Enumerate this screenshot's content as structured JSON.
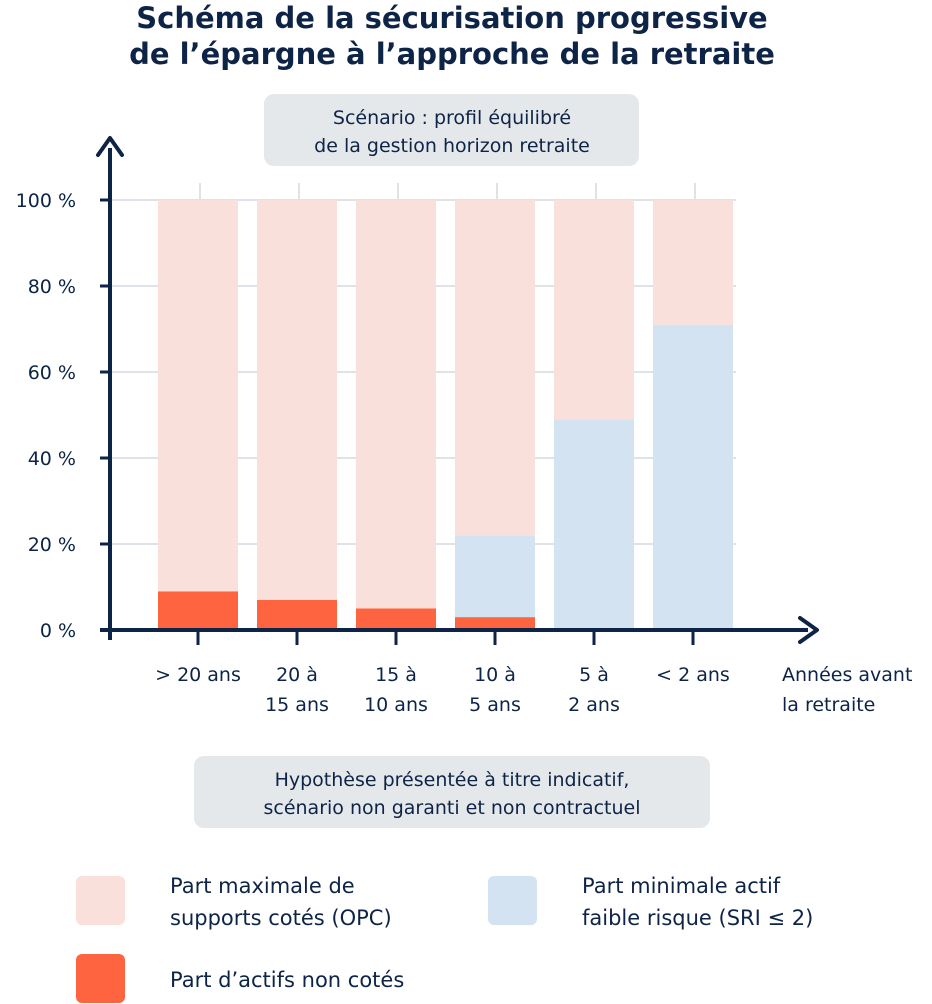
{
  "chart_data": {
    "type": "bar",
    "stacked": true,
    "title": [
      "Schéma de la sécurisation progressive",
      "de l’épargne à l’approche de la retraite"
    ],
    "subtitle": [
      "Scénario : profil équilibré",
      "de la gestion horizon retraite"
    ],
    "xlabel": [
      "Années avant",
      "la retraite"
    ],
    "ylim": [
      0,
      100
    ],
    "yticks": [
      "0 %",
      "20 %",
      "40 %",
      "60 %",
      "80 %",
      "100 %"
    ],
    "grid": true,
    "categories": [
      [
        "> 20 ans"
      ],
      [
        "20 à",
        "15 ans"
      ],
      [
        "15 à",
        "10 ans"
      ],
      [
        "10 à",
        "5 ans"
      ],
      [
        "5 à",
        "2 ans"
      ],
      [
        "< 2 ans"
      ]
    ],
    "series": [
      {
        "name": "Part d’actifs non cotés",
        "color": "#ff6441",
        "values": [
          9,
          7,
          5,
          3,
          0,
          0
        ]
      },
      {
        "name": "Part minimale actif faible risque (SRI ≤ 2)",
        "color": "#d3e3f1",
        "values": [
          0,
          0,
          0,
          19,
          49,
          71
        ]
      },
      {
        "name": "Part maximale de supports cotés (OPC)",
        "color": "#fae0da",
        "values": [
          91,
          93,
          95,
          78,
          51,
          29
        ]
      }
    ],
    "note": [
      "Hypothèse présentée à titre indicatif,",
      "scénario non garanti et non contractuel"
    ],
    "legend": [
      {
        "lines": [
          "Part maximale de",
          "supports cotés (OPC)"
        ],
        "color": "#fae0da"
      },
      {
        "lines": [
          "Part minimale actif",
          "faible risque (SRI ≤ 2)"
        ],
        "color": "#d3e3f1"
      },
      {
        "lines": [
          "Part d’actifs non cotés"
        ],
        "color": "#ff6441"
      }
    ],
    "legend_position": "bottom"
  }
}
